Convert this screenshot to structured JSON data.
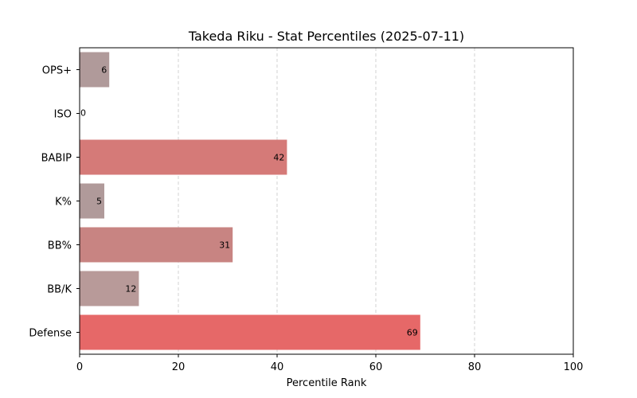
{
  "chart_data": {
    "type": "bar",
    "orientation": "horizontal",
    "title": "Takeda Riku - Stat Percentiles (2025-07-11)",
    "xlabel": "Percentile Rank",
    "ylabel": "",
    "xlim": [
      0,
      100
    ],
    "x_ticks": [
      0,
      20,
      40,
      60,
      80,
      100
    ],
    "grid": "x-dashed",
    "categories": [
      "OPS+",
      "ISO",
      "BABIP",
      "K%",
      "BB%",
      "BB/K",
      "Defense"
    ],
    "values": [
      6,
      0,
      42,
      5,
      31,
      12,
      69
    ],
    "colors": [
      "#b09a9a",
      "#a9a9a9",
      "#d57a78",
      "#b09a9a",
      "#c88482",
      "#b89a99",
      "#e66868"
    ]
  }
}
